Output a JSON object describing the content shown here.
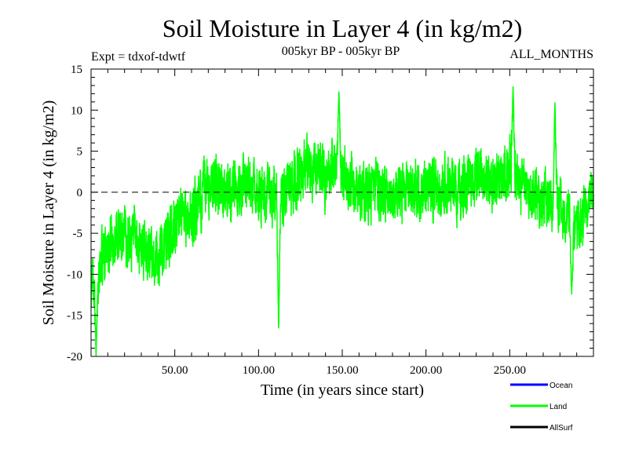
{
  "chart_data": {
    "type": "line",
    "title": "Soil Moisture in Layer 4 (in kg/m2)",
    "subtitle_left": "Expt = tdxof-tdwtf",
    "subtitle_center": "005kyr BP - 005kyr BP",
    "subtitle_right": "ALL_MONTHS",
    "xlabel": "Time (in years since start)",
    "ylabel": "Soil Moisture in Layer 4 (in kg/m2)",
    "xlim": [
      0,
      300
    ],
    "ylim": [
      -20,
      15
    ],
    "x_ticks": [
      50,
      100,
      150,
      200,
      250
    ],
    "x_tick_labels": [
      "50.00",
      "100.00",
      "150.00",
      "200.00",
      "250.00"
    ],
    "y_ticks": [
      15,
      10,
      5,
      0,
      -5,
      -10,
      -15,
      -20
    ],
    "y_tick_labels": [
      "15",
      "10",
      "5",
      "0",
      "-5",
      "-10",
      "-15",
      "-20"
    ],
    "zero_line": 0,
    "legend": [
      {
        "name": "Ocean",
        "color": "#0000ff"
      },
      {
        "name": "Land",
        "color": "#00ff00"
      },
      {
        "name": "AllSurf",
        "color": "#000000"
      }
    ],
    "series": [
      {
        "name": "Land",
        "color": "#00ff00",
        "monthly": true,
        "n_points": 3600,
        "trend_x": [
          0,
          5,
          10,
          20,
          30,
          40,
          50,
          60,
          70,
          80,
          90,
          100,
          110,
          120,
          130,
          140,
          150,
          160,
          170,
          180,
          190,
          200,
          210,
          220,
          230,
          240,
          250,
          260,
          270,
          280,
          290,
          300
        ],
        "trend_y": [
          -11,
          -9,
          -6,
          -5,
          -7,
          -8,
          -4,
          -3,
          1,
          0,
          1,
          0,
          -1,
          1,
          3,
          2,
          3,
          0,
          0,
          0,
          0,
          0,
          1,
          0,
          2,
          1,
          3,
          0,
          -1,
          -1,
          -5,
          0
        ],
        "amplitude": 4.5,
        "extremes": [
          {
            "x": 3,
            "y": -20
          },
          {
            "x": 112,
            "y": -17
          },
          {
            "x": 148,
            "y": 12.5
          },
          {
            "x": 252,
            "y": 13
          },
          {
            "x": 277,
            "y": 11
          },
          {
            "x": 287,
            "y": -12.5
          }
        ]
      }
    ]
  }
}
